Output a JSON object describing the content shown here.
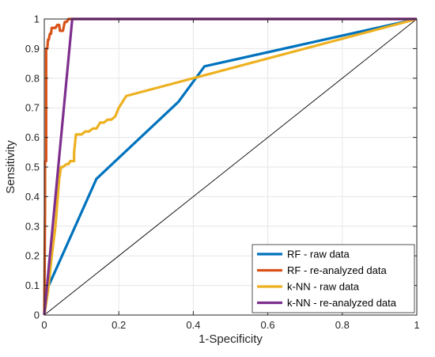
{
  "chart_data": {
    "type": "line",
    "xlabel": "1-Specificity",
    "ylabel": "Sensitivity",
    "xlim": [
      0,
      1
    ],
    "ylim": [
      0,
      1
    ],
    "xticks": [
      "0",
      "0.2",
      "0.4",
      "0.6",
      "0.8",
      "1"
    ],
    "yticks": [
      "0",
      "0.1",
      "0.2",
      "0.3",
      "0.4",
      "0.5",
      "0.6",
      "0.7",
      "0.8",
      "0.9",
      "1"
    ],
    "grid": true,
    "legend_position": "bottom-right",
    "series": [
      {
        "name": "RF - raw data",
        "color": "#0072BD",
        "x": [
          0,
          0.005,
          0.14,
          0.36,
          0.43,
          1
        ],
        "y": [
          0,
          0.08,
          0.46,
          0.72,
          0.84,
          1
        ]
      },
      {
        "name": "RF - re-analyzed data",
        "color": "#D95319",
        "x": [
          0,
          0.002,
          0.002,
          0.005,
          0.005,
          0.008,
          0.01,
          0.012,
          0.015,
          0.018,
          0.02,
          0.025,
          0.03,
          0.035,
          0.04,
          0.042,
          0.05,
          0.055,
          0.06,
          0.065,
          0.07,
          1
        ],
        "y": [
          0,
          0.35,
          0.52,
          0.52,
          0.9,
          0.9,
          0.93,
          0.93,
          0.95,
          0.95,
          0.97,
          0.97,
          0.97,
          0.98,
          0.98,
          0.96,
          0.96,
          0.99,
          0.99,
          1,
          1,
          1
        ]
      },
      {
        "name": "k-NN - raw data",
        "color": "#EDB120",
        "x": [
          0,
          0.01,
          0.02,
          0.03,
          0.04,
          0.045,
          0.05,
          0.06,
          0.065,
          0.07,
          0.08,
          0.08,
          0.085,
          0.09,
          0.1,
          0.11,
          0.12,
          0.13,
          0.14,
          0.15,
          0.16,
          0.17,
          0.18,
          0.19,
          0.2,
          0.21,
          0.22,
          0.43,
          1
        ],
        "y": [
          0,
          0.08,
          0.2,
          0.3,
          0.46,
          0.5,
          0.5,
          0.51,
          0.51,
          0.52,
          0.52,
          0.55,
          0.61,
          0.61,
          0.61,
          0.62,
          0.62,
          0.63,
          0.63,
          0.65,
          0.65,
          0.66,
          0.66,
          0.67,
          0.7,
          0.72,
          0.74,
          0.81,
          1
        ]
      },
      {
        "name": "k-NN - re-analyzed data",
        "color": "#7E2F8E",
        "x": [
          0,
          0.075,
          1
        ],
        "y": [
          0,
          1,
          1
        ]
      }
    ]
  }
}
